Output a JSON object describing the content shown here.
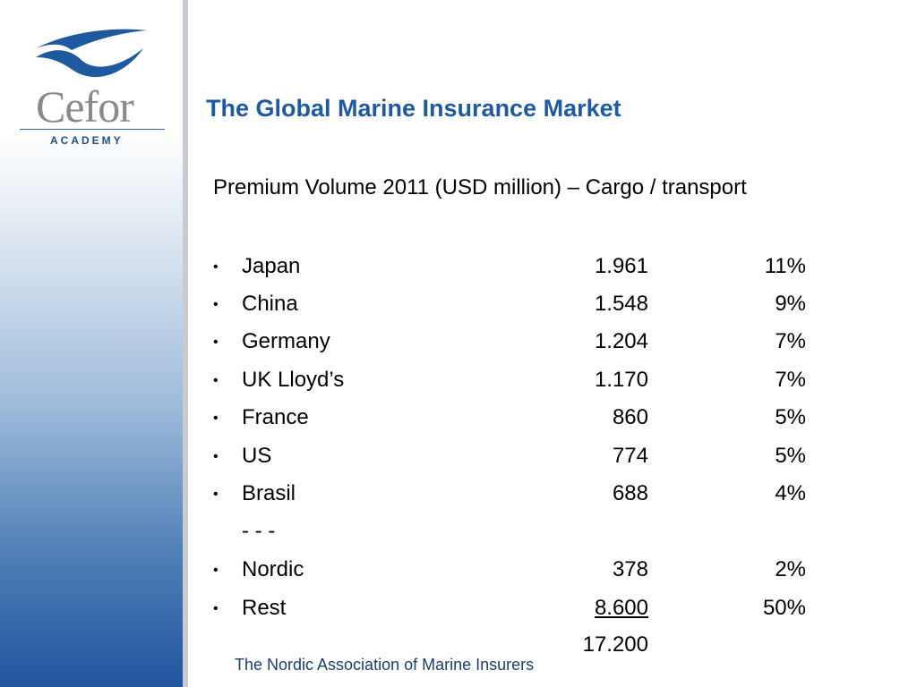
{
  "logo": {
    "name": "Cefor",
    "sub": "ACADEMY"
  },
  "title": "The Global Marine Insurance Market",
  "subtitle": "Premium Volume 2011 (USD million) – Cargo / transport",
  "bullet_char": "•",
  "rows": [
    {
      "country": "Japan",
      "value": "1.961",
      "pct": "11%"
    },
    {
      "country": "China",
      "value": "1.548",
      "pct": "9%"
    },
    {
      "country": "Germany",
      "value": "1.204",
      "pct": "7%"
    },
    {
      "country": "UK Lloyd’s",
      "value": "1.170",
      "pct": "7%"
    },
    {
      "country": "France",
      "value": "860",
      "pct": "5%"
    },
    {
      "country": "US",
      "value": "774",
      "pct": "5%"
    },
    {
      "country": "Brasil",
      "value": "688",
      "pct": "4%"
    },
    {
      "country": "- - -",
      "value": "",
      "pct": ""
    },
    {
      "country": "Nordic",
      "value": "378",
      "pct": "2%"
    },
    {
      "country": "Rest",
      "value": "8.600",
      "pct": "50%"
    }
  ],
  "total": "17.200",
  "footer": "The Nordic Association of Marine Insurers",
  "colors": {
    "title": "#1e5aa0",
    "sidebar_bottom": "#1f559e",
    "logo_wave": "#1d5aa0",
    "logo_text": "#8a8a8a"
  }
}
